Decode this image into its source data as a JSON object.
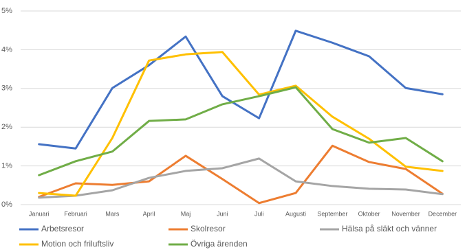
{
  "chart_data": {
    "type": "line",
    "categories": [
      "Januari",
      "Februari",
      "Mars",
      "April",
      "Maj",
      "Juni",
      "Juli",
      "Augusti",
      "September",
      "Oktober",
      "November",
      "December"
    ],
    "series": [
      {
        "name": "Arbetsresor",
        "color": "#4472c4",
        "values": [
          1.56,
          1.45,
          3.01,
          3.6,
          4.34,
          2.8,
          2.23,
          4.49,
          4.18,
          3.83,
          3.01,
          2.85
        ]
      },
      {
        "name": "Skolresor",
        "color": "#ed7d31",
        "values": [
          0.2,
          0.55,
          0.51,
          0.6,
          1.26,
          0.66,
          0.04,
          0.3,
          1.52,
          1.1,
          0.92,
          0.28
        ]
      },
      {
        "name": "Hälsa på släkt och vänner",
        "color": "#a5a5a5",
        "values": [
          0.18,
          0.23,
          0.37,
          0.69,
          0.87,
          0.94,
          1.19,
          0.6,
          0.48,
          0.41,
          0.39,
          0.27
        ]
      },
      {
        "name": "Motion och friluftsliv",
        "color": "#ffc000",
        "values": [
          0.3,
          0.23,
          1.72,
          3.72,
          3.88,
          3.94,
          2.84,
          3.07,
          2.27,
          1.7,
          0.98,
          0.87
        ]
      },
      {
        "name": "Övriga ärenden",
        "color": "#70ad47",
        "values": [
          0.76,
          1.12,
          1.37,
          2.16,
          2.2,
          2.59,
          2.8,
          3.03,
          1.95,
          1.6,
          1.72,
          1.12
        ]
      }
    ],
    "ylim": [
      0,
      5
    ],
    "yticks": [
      {
        "value": 0,
        "label": "0%"
      },
      {
        "value": 1,
        "label": "1%"
      },
      {
        "value": 2,
        "label": "2%"
      },
      {
        "value": 3,
        "label": "3%"
      },
      {
        "value": 4,
        "label": "4%"
      },
      {
        "value": 5,
        "label": "5%"
      }
    ],
    "grid": true
  }
}
